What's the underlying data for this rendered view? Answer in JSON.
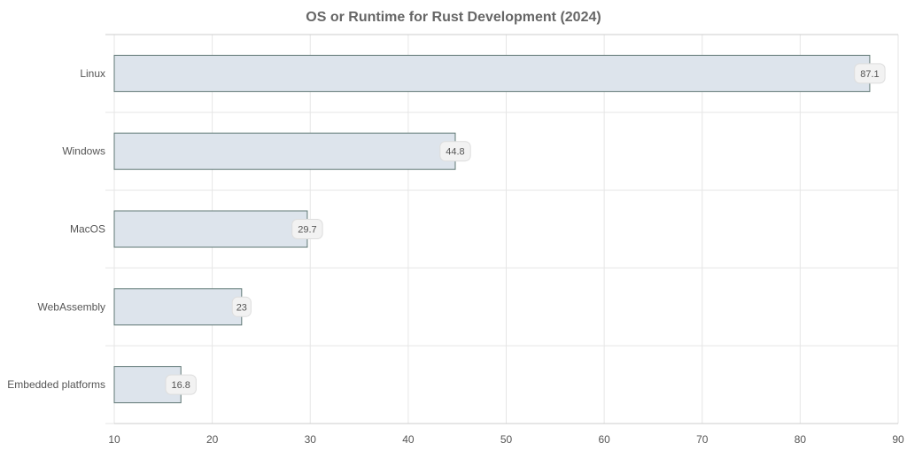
{
  "chart_data": {
    "type": "bar",
    "orientation": "horizontal",
    "title": "OS or Runtime for Rust Development (2024)",
    "xlabel": "",
    "ylabel": "",
    "categories": [
      "Linux",
      "Windows",
      "MacOS",
      "WebAssembly",
      "Embedded platforms"
    ],
    "values": [
      87.1,
      44.8,
      29.7,
      23,
      16.8
    ],
    "value_labels": [
      "87.1",
      "44.8",
      "29.7",
      "23",
      "16.8"
    ],
    "xlim": [
      10,
      90
    ],
    "x_ticks": [
      "10",
      "20",
      "30",
      "40",
      "50",
      "60",
      "70",
      "80",
      "90"
    ],
    "grid": true,
    "legend": "none"
  },
  "colors": {
    "bar_fill": "#dde4ec",
    "bar_stroke": "#5f7774",
    "grid": "#e6e6e6",
    "axis": "#cccccc",
    "label_box": "#f2f2f2",
    "label_box_stroke": "#dddddd"
  }
}
